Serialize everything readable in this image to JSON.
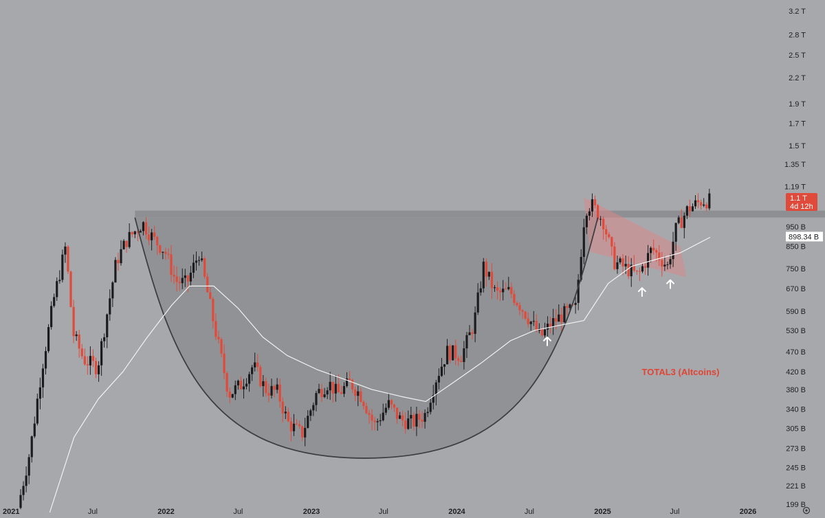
{
  "chart_data": {
    "type": "candlestick",
    "title": "",
    "series_label": "TOTAL3 (Altcoins)",
    "scale": "log",
    "ylim": [
      190000000000,
      3250000000000
    ],
    "y_ticks": [
      {
        "label": "3.2 T",
        "value": 3200000000000.0
      },
      {
        "label": "2.8 T",
        "value": 2800000000000.0
      },
      {
        "label": "2.5 T",
        "value": 2500000000000.0
      },
      {
        "label": "2.2 T",
        "value": 2200000000000.0
      },
      {
        "label": "1.9 T",
        "value": 1900000000000.0
      },
      {
        "label": "1.7 T",
        "value": 1700000000000.0
      },
      {
        "label": "1.5 T",
        "value": 1500000000000.0
      },
      {
        "label": "1.35 T",
        "value": 1350000000000.0
      },
      {
        "label": "1.19 T",
        "value": 1190000000000.0
      },
      {
        "label": "950 B",
        "value": 950000000000.0
      },
      {
        "label": "850 B",
        "value": 850000000000.0
      },
      {
        "label": "750 B",
        "value": 750000000000.0
      },
      {
        "label": "670 B",
        "value": 670000000000.0
      },
      {
        "label": "590 B",
        "value": 590000000000.0
      },
      {
        "label": "530 B",
        "value": 530000000000.0
      },
      {
        "label": "470 B",
        "value": 470000000000.0
      },
      {
        "label": "420 B",
        "value": 420000000000.0
      },
      {
        "label": "380 B",
        "value": 380000000000.0
      },
      {
        "label": "340 B",
        "value": 340000000000.0
      },
      {
        "label": "305 B",
        "value": 305000000000.0
      },
      {
        "label": "273 B",
        "value": 273000000000.0
      },
      {
        "label": "245 B",
        "value": 245000000000.0
      },
      {
        "label": "221 B",
        "value": 221000000000.0
      },
      {
        "label": "199 B",
        "value": 199000000000.0
      }
    ],
    "x_ticks": [
      {
        "label": "2021",
        "date": "2021-01-01",
        "bold": true
      },
      {
        "label": "Jul",
        "date": "2021-07-01",
        "bold": false
      },
      {
        "label": "2022",
        "date": "2022-01-01",
        "bold": true
      },
      {
        "label": "Jul",
        "date": "2022-07-01",
        "bold": false
      },
      {
        "label": "2023",
        "date": "2023-01-01",
        "bold": true
      },
      {
        "label": "Jul",
        "date": "2023-07-01",
        "bold": false
      },
      {
        "label": "2024",
        "date": "2024-01-01",
        "bold": true
      },
      {
        "label": "Jul",
        "date": "2024-07-01",
        "bold": false
      },
      {
        "label": "2025",
        "date": "2025-01-01",
        "bold": true
      },
      {
        "label": "Jul",
        "date": "2025-07-01",
        "bold": false
      },
      {
        "label": "2026",
        "date": "2026-01-01",
        "bold": true
      }
    ],
    "price_path": [
      [
        "2021-01-01",
        195000000000.0
      ],
      [
        "2021-02-01",
        270000000000.0
      ],
      [
        "2021-03-01",
        420000000000.0
      ],
      [
        "2021-04-01",
        630000000000.0
      ],
      [
        "2021-05-01",
        850000000000.0
      ],
      [
        "2021-05-20",
        520000000000.0
      ],
      [
        "2021-06-15",
        450000000000.0
      ],
      [
        "2021-07-20",
        430000000000.0
      ],
      [
        "2021-09-05",
        780000000000.0
      ],
      [
        "2021-10-01",
        880000000000.0
      ],
      [
        "2021-11-10",
        970000000000.0
      ],
      [
        "2021-12-10",
        880000000000.0
      ],
      [
        "2022-01-05",
        830000000000.0
      ],
      [
        "2022-02-01",
        700000000000.0
      ],
      [
        "2022-03-01",
        690000000000.0
      ],
      [
        "2022-04-01",
        820000000000.0
      ],
      [
        "2022-05-10",
        540000000000.0
      ],
      [
        "2022-06-15",
        370000000000.0
      ],
      [
        "2022-07-15",
        390000000000.0
      ],
      [
        "2022-08-15",
        435000000000.0
      ],
      [
        "2022-09-15",
        380000000000.0
      ],
      [
        "2022-10-15",
        375000000000.0
      ],
      [
        "2022-11-10",
        315000000000.0
      ],
      [
        "2022-12-15",
        295000000000.0
      ],
      [
        "2023-01-20",
        370000000000.0
      ],
      [
        "2023-02-20",
        395000000000.0
      ],
      [
        "2023-03-15",
        370000000000.0
      ],
      [
        "2023-04-15",
        395000000000.0
      ],
      [
        "2023-05-15",
        365000000000.0
      ],
      [
        "2023-06-15",
        310000000000.0
      ],
      [
        "2023-07-20",
        350000000000.0
      ],
      [
        "2023-08-20",
        320000000000.0
      ],
      [
        "2023-09-20",
        315000000000.0
      ],
      [
        "2023-10-20",
        330000000000.0
      ],
      [
        "2023-11-15",
        400000000000.0
      ],
      [
        "2023-12-15",
        470000000000.0
      ],
      [
        "2024-01-20",
        460000000000.0
      ],
      [
        "2024-02-20",
        550000000000.0
      ],
      [
        "2024-03-15",
        760000000000.0
      ],
      [
        "2024-04-15",
        650000000000.0
      ],
      [
        "2024-05-20",
        660000000000.0
      ],
      [
        "2024-06-15",
        610000000000.0
      ],
      [
        "2024-07-10",
        560000000000.0
      ],
      [
        "2024-08-05",
        510000000000.0
      ],
      [
        "2024-09-01",
        550000000000.0
      ],
      [
        "2024-10-01",
        580000000000.0
      ],
      [
        "2024-11-01",
        600000000000.0
      ],
      [
        "2024-11-25",
        1050000000000.0
      ],
      [
        "2024-12-10",
        1080000000000.0
      ],
      [
        "2025-01-10",
        980000000000.0
      ],
      [
        "2025-02-05",
        780000000000.0
      ],
      [
        "2025-03-10",
        750000000000.0
      ],
      [
        "2025-04-07",
        720000000000.0
      ],
      [
        "2025-05-12",
        840000000000.0
      ],
      [
        "2025-06-20",
        760000000000.0
      ],
      [
        "2025-07-10",
        930000000000.0
      ],
      [
        "2025-08-10",
        1050000000000.0
      ],
      [
        "2025-09-15",
        1100000000000.0
      ],
      [
        "2025-09-28",
        1100000000000.0
      ]
    ],
    "moving_average": [
      [
        "2021-03-15",
        190000000000.0
      ],
      [
        "2021-05-15",
        290000000000.0
      ],
      [
        "2021-07-15",
        360000000000.0
      ],
      [
        "2021-09-15",
        420000000000.0
      ],
      [
        "2021-11-15",
        510000000000.0
      ],
      [
        "2022-01-15",
        610000000000.0
      ],
      [
        "2022-03-01",
        680000000000.0
      ],
      [
        "2022-05-01",
        680000000000.0
      ],
      [
        "2022-07-01",
        600000000000.0
      ],
      [
        "2022-09-01",
        510000000000.0
      ],
      [
        "2022-11-01",
        460000000000.0
      ],
      [
        "2023-01-15",
        425000000000.0
      ],
      [
        "2023-04-01",
        400000000000.0
      ],
      [
        "2023-06-01",
        380000000000.0
      ],
      [
        "2023-08-15",
        365000000000.0
      ],
      [
        "2023-10-15",
        355000000000.0
      ],
      [
        "2023-12-15",
        390000000000.0
      ],
      [
        "2024-03-01",
        440000000000.0
      ],
      [
        "2024-05-15",
        500000000000.0
      ],
      [
        "2024-07-15",
        530000000000.0
      ],
      [
        "2024-09-15",
        545000000000.0
      ],
      [
        "2024-11-15",
        560000000000.0
      ],
      [
        "2025-01-15",
        690000000000.0
      ],
      [
        "2025-03-15",
        760000000000.0
      ],
      [
        "2025-05-15",
        790000000000.0
      ],
      [
        "2025-07-15",
        820000000000.0
      ],
      [
        "2025-09-28",
        895000000000.0
      ]
    ],
    "resistance_level": 1020000000000.0,
    "cup_curve": [
      [
        "2021-10-15",
        1000000000000.0
      ],
      [
        "2023-05-15",
        258000000000.0
      ],
      [
        "2024-12-20",
        1000000000000.0
      ]
    ],
    "consolidation_channel": [
      [
        "2024-11-15",
        1120000000000.0
      ],
      [
        "2025-07-15",
        850000000000.0
      ],
      [
        "2025-07-30",
        715000000000.0
      ],
      [
        "2024-11-30",
        825000000000.0
      ]
    ],
    "arrows": [
      [
        "2024-08-15",
        500000000000.0
      ],
      [
        "2025-04-10",
        660000000000.0
      ],
      [
        "2025-06-20",
        690000000000.0
      ]
    ],
    "current_price": {
      "label": "1.1 T",
      "value": 1100000000000.0,
      "countdown": "4d 12h"
    },
    "ma_value": {
      "label": "898.34 B",
      "value": 898340000000.0
    },
    "colors": {
      "background": "#a7a8ac",
      "up_candle": "#1c1c1f",
      "down_candle": "#e04a3a",
      "moving_average": "#f2f2f2",
      "cup_fill": "#7f8084",
      "resistance_band": "#86878b",
      "channel_fill": "#d9888a",
      "price_tag": "#e04a3a",
      "annotation": "#e14434",
      "arrow": "#ffffff"
    }
  }
}
